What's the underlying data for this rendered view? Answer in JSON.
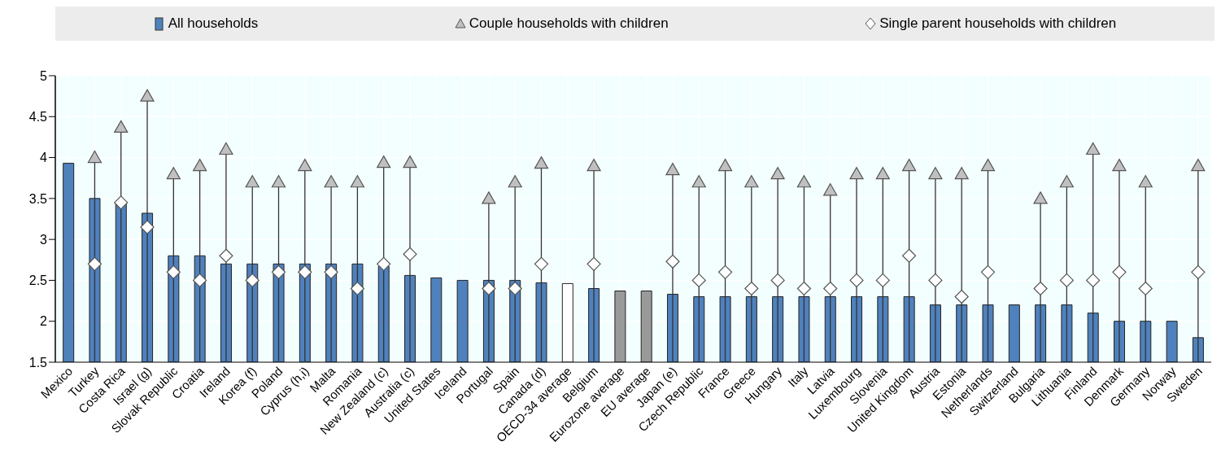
{
  "chart_data": {
    "type": "bar",
    "categories": [
      "Mexico",
      "Turkey",
      "Costa Rica",
      "Israel (g)",
      "Slovak Republic",
      "Croatia",
      "Ireland",
      "Korea (f)",
      "Poland",
      "Cyprus (h,i)",
      "Malta",
      "Romania",
      "New Zealand (c)",
      "Australia (c)",
      "United States",
      "Iceland",
      "Portugal",
      "Spain",
      "Canada (d)",
      "OECD-34 average",
      "Belgium",
      "Eurozone average",
      "EU average",
      "Japan (e)",
      "Czech Republic",
      "France",
      "Greece",
      "Hungary",
      "Italy",
      "Latvia",
      "Luxembourg",
      "Slovenia",
      "United Kingdom",
      "Austria",
      "Estonia",
      "Netherlands",
      "Switzerland",
      "Bulgaria",
      "Lithuania",
      "Finland",
      "Denmark",
      "Germany",
      "Norway",
      "Sweden"
    ],
    "series": [
      {
        "name": "All households",
        "color": "#4f81bd",
        "colors": [
          "#4f81bd",
          "#4f81bd",
          "#4f81bd",
          "#4f81bd",
          "#4f81bd",
          "#4f81bd",
          "#4f81bd",
          "#4f81bd",
          "#4f81bd",
          "#4f81bd",
          "#4f81bd",
          "#4f81bd",
          "#4f81bd",
          "#4f81bd",
          "#4f81bd",
          "#4f81bd",
          "#4f81bd",
          "#4f81bd",
          "#4f81bd",
          "#ffffff",
          "#4f81bd",
          "#9a9a9a",
          "#9a9a9a",
          "#4f81bd",
          "#4f81bd",
          "#4f81bd",
          "#4f81bd",
          "#4f81bd",
          "#4f81bd",
          "#4f81bd",
          "#4f81bd",
          "#4f81bd",
          "#4f81bd",
          "#4f81bd",
          "#4f81bd",
          "#4f81bd",
          "#4f81bd",
          "#4f81bd",
          "#4f81bd",
          "#4f81bd",
          "#4f81bd",
          "#4f81bd",
          "#4f81bd",
          "#4f81bd"
        ],
        "values": [
          3.93,
          3.5,
          3.45,
          3.32,
          2.8,
          2.8,
          2.7,
          2.7,
          2.7,
          2.7,
          2.7,
          2.7,
          2.67,
          2.56,
          2.53,
          2.5,
          2.5,
          2.5,
          2.47,
          2.46,
          2.4,
          2.37,
          2.37,
          2.33,
          2.3,
          2.3,
          2.3,
          2.3,
          2.3,
          2.3,
          2.3,
          2.3,
          2.3,
          2.2,
          2.2,
          2.2,
          2.2,
          2.2,
          2.2,
          2.1,
          2.0,
          2.0,
          2.0,
          1.8
        ]
      },
      {
        "name": "Couple households with children",
        "type": "scatter",
        "marker": "triangle",
        "color": "#c0c0c0",
        "values": [
          null,
          4.0,
          4.37,
          4.75,
          3.8,
          3.9,
          4.1,
          3.7,
          3.7,
          3.9,
          3.7,
          3.7,
          3.94,
          3.94,
          null,
          null,
          3.5,
          3.7,
          3.93,
          null,
          3.9,
          null,
          null,
          3.85,
          3.7,
          3.9,
          3.7,
          3.8,
          3.7,
          3.6,
          3.8,
          3.8,
          3.9,
          3.8,
          3.8,
          3.9,
          null,
          3.5,
          3.7,
          4.1,
          3.9,
          3.7,
          null,
          3.9
        ]
      },
      {
        "name": "Single parent households with children",
        "type": "scatter",
        "marker": "diamond",
        "color": "#ffffff",
        "values": [
          null,
          2.7,
          3.45,
          3.15,
          2.6,
          2.5,
          2.8,
          2.5,
          2.6,
          2.6,
          2.6,
          2.4,
          2.7,
          2.82,
          null,
          null,
          2.4,
          2.4,
          2.7,
          null,
          2.7,
          null,
          null,
          2.73,
          2.5,
          2.6,
          2.4,
          2.5,
          2.4,
          2.4,
          2.5,
          2.5,
          2.8,
          2.5,
          2.3,
          2.6,
          null,
          2.4,
          2.5,
          2.5,
          2.6,
          2.4,
          null,
          2.6
        ]
      }
    ],
    "ylim": [
      1.5,
      5
    ],
    "yticks": [
      1.5,
      2,
      2.5,
      3,
      3.5,
      4,
      4.5,
      5
    ],
    "grid": true,
    "legend": "top"
  }
}
